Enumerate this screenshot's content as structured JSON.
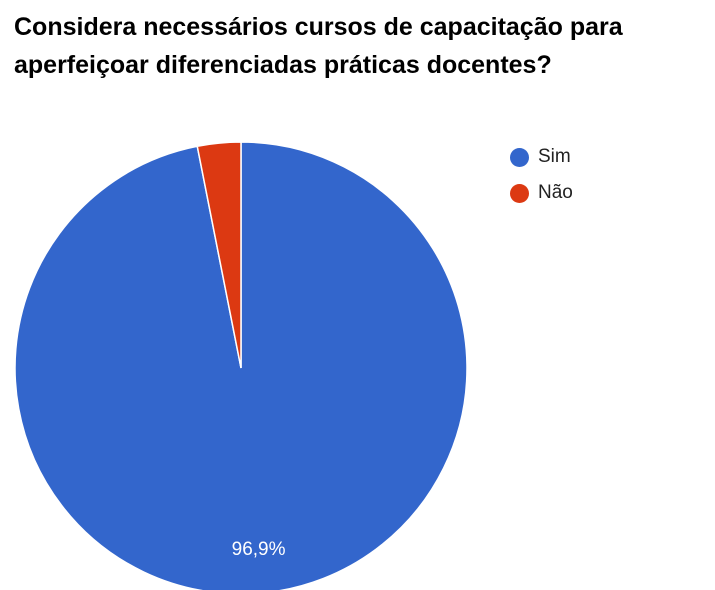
{
  "chart_data": {
    "type": "pie",
    "title": "Considera necessários cursos de capacitação para aperfeiçoar diferenciadas práticas docentes?",
    "categories": [
      "Sim",
      "Não"
    ],
    "values": [
      96.9,
      3.1
    ],
    "labels": [
      "96,9%",
      ""
    ],
    "colors": [
      "#3366cc",
      "#dc3912"
    ],
    "legend_position": "right"
  }
}
